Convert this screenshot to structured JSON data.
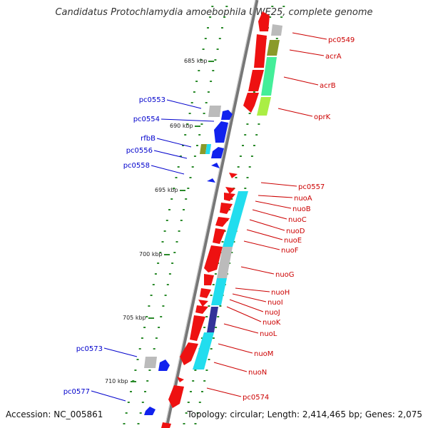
{
  "title": "Candidatus Protochlamydia amoebophila UWE25, complete genome",
  "footer": {
    "accession": "Accession: NC_005861",
    "summary": "Topology: circular; Length: 2,414,465 bp; Genes: 2,075"
  },
  "scale_labels": [
    "685 kbp",
    "690 kbp",
    "695 kbp",
    "700 kbp",
    "705 kbp",
    "710 kbp"
  ],
  "colors": {
    "forward_label": "#cc0000",
    "reverse_label": "#0000cc",
    "forward_gene": "#ee1111",
    "reverse_gene": "#1122ee",
    "hypothetical": "#bbbbbb",
    "membrane_olive": "#8a9a2a",
    "membrane_green": "#44ee99",
    "membrane_lime": "#aaee44",
    "nuo_cyan": "#22ddee",
    "nuo_navy": "#333399",
    "backbone": "#777777",
    "tick_green": "#2a8a2a"
  },
  "labels_right": [
    "pc0549",
    "acrA",
    "acrB",
    "oprK",
    "pc0557",
    "nuoA",
    "nuoB",
    "nuoC",
    "nuoD",
    "nuoE",
    "nuoF",
    "nuoG",
    "nuoH",
    "nuoI",
    "nuoJ",
    "nuoK",
    "nuoL",
    "nuoM",
    "nuoN",
    "pc0574"
  ],
  "labels_left": [
    "pc0553",
    "pc0554",
    "rfbB",
    "pc0556",
    "pc0558",
    "pc0573",
    "pc0577"
  ]
}
